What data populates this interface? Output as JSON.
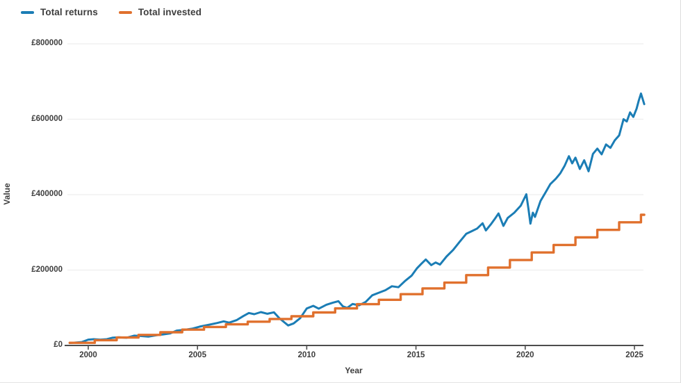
{
  "legend": {
    "items": [
      {
        "label": "Total returns",
        "color": "#1b7db5"
      },
      {
        "label": "Total invested",
        "color": "#e0702d"
      }
    ]
  },
  "colors": {
    "returns_line": "#1b7db5",
    "invested_line": "#e0702d",
    "axis": "#4d4d4d",
    "gridline": "#ededed",
    "text": "#3d3d3d",
    "background": "#ffffff"
  },
  "chart_data": {
    "type": "line",
    "title": "",
    "xlabel": "Year",
    "ylabel": "Value",
    "x_range": [
      1999.15,
      2025.45
    ],
    "ylim": [
      0,
      800000
    ],
    "grid": "horizontal-only",
    "legend_position": "top-left",
    "x_ticks": [
      {
        "value": 2000,
        "label": "2000"
      },
      {
        "value": 2005,
        "label": "2005"
      },
      {
        "value": 2010,
        "label": "2010"
      },
      {
        "value": 2015,
        "label": "2015"
      },
      {
        "value": 2020,
        "label": "2020"
      },
      {
        "value": 2025,
        "label": "2025"
      }
    ],
    "y_ticks": [
      {
        "value": 0,
        "label": "£0"
      },
      {
        "value": 200000,
        "label": "£200000"
      },
      {
        "value": 400000,
        "label": "£400000"
      },
      {
        "value": 600000,
        "label": "£600000"
      },
      {
        "value": 800000,
        "label": "£800000"
      }
    ],
    "series": [
      {
        "name": "Total returns",
        "color": "#1b7db5",
        "style": "line",
        "points": [
          [
            1999.15,
            6500
          ],
          [
            1999.4,
            7500
          ],
          [
            1999.7,
            9000
          ],
          [
            2000.0,
            15500
          ],
          [
            2000.25,
            16500
          ],
          [
            2000.55,
            15500
          ],
          [
            2000.85,
            16500
          ],
          [
            2001.1,
            20500
          ],
          [
            2001.4,
            21500
          ],
          [
            2001.75,
            20500
          ],
          [
            2002.1,
            26000
          ],
          [
            2002.4,
            25000
          ],
          [
            2002.75,
            23500
          ],
          [
            2003.1,
            27000
          ],
          [
            2003.45,
            29500
          ],
          [
            2003.75,
            32000
          ],
          [
            2004.05,
            39500
          ],
          [
            2004.4,
            41500
          ],
          [
            2004.75,
            44500
          ],
          [
            2005.1,
            50000
          ],
          [
            2005.5,
            54500
          ],
          [
            2005.9,
            59500
          ],
          [
            2006.2,
            64000
          ],
          [
            2006.45,
            60500
          ],
          [
            2006.8,
            67500
          ],
          [
            2007.1,
            78000
          ],
          [
            2007.35,
            86000
          ],
          [
            2007.6,
            83000
          ],
          [
            2007.9,
            88500
          ],
          [
            2008.2,
            84000
          ],
          [
            2008.5,
            88000
          ],
          [
            2008.75,
            72000
          ],
          [
            2009.0,
            60000
          ],
          [
            2009.15,
            53000
          ],
          [
            2009.4,
            58500
          ],
          [
            2009.7,
            72500
          ],
          [
            2010.0,
            98000
          ],
          [
            2010.3,
            105000
          ],
          [
            2010.55,
            97500
          ],
          [
            2010.9,
            108000
          ],
          [
            2011.2,
            113500
          ],
          [
            2011.45,
            117500
          ],
          [
            2011.65,
            104000
          ],
          [
            2011.85,
            99500
          ],
          [
            2012.1,
            110000
          ],
          [
            2012.4,
            106500
          ],
          [
            2012.7,
            115500
          ],
          [
            2013.0,
            133000
          ],
          [
            2013.3,
            140000
          ],
          [
            2013.6,
            146500
          ],
          [
            2013.9,
            157000
          ],
          [
            2014.2,
            154500
          ],
          [
            2014.5,
            171000
          ],
          [
            2014.8,
            185000
          ],
          [
            2015.05,
            205000
          ],
          [
            2015.25,
            217000
          ],
          [
            2015.45,
            228000
          ],
          [
            2015.7,
            213000
          ],
          [
            2015.9,
            220000
          ],
          [
            2016.1,
            214500
          ],
          [
            2016.4,
            236000
          ],
          [
            2016.7,
            253000
          ],
          [
            2017.0,
            275000
          ],
          [
            2017.3,
            296000
          ],
          [
            2017.55,
            303000
          ],
          [
            2017.8,
            310000
          ],
          [
            2018.05,
            324000
          ],
          [
            2018.2,
            305000
          ],
          [
            2018.45,
            323000
          ],
          [
            2018.6,
            335000
          ],
          [
            2018.78,
            350000
          ],
          [
            2019.0,
            317000
          ],
          [
            2019.2,
            338000
          ],
          [
            2019.5,
            352000
          ],
          [
            2019.8,
            371000
          ],
          [
            2020.05,
            401000
          ],
          [
            2020.15,
            362000
          ],
          [
            2020.24,
            323000
          ],
          [
            2020.35,
            352000
          ],
          [
            2020.45,
            341000
          ],
          [
            2020.7,
            383000
          ],
          [
            2020.95,
            408000
          ],
          [
            2021.15,
            428000
          ],
          [
            2021.4,
            442000
          ],
          [
            2021.6,
            456000
          ],
          [
            2021.8,
            476000
          ],
          [
            2022.0,
            502000
          ],
          [
            2022.15,
            483000
          ],
          [
            2022.3,
            498000
          ],
          [
            2022.5,
            468000
          ],
          [
            2022.7,
            491000
          ],
          [
            2022.9,
            462000
          ],
          [
            2023.1,
            508000
          ],
          [
            2023.3,
            522000
          ],
          [
            2023.5,
            507000
          ],
          [
            2023.7,
            533000
          ],
          [
            2023.9,
            524000
          ],
          [
            2024.1,
            544000
          ],
          [
            2024.3,
            557000
          ],
          [
            2024.5,
            600000
          ],
          [
            2024.65,
            594000
          ],
          [
            2024.8,
            618000
          ],
          [
            2024.95,
            606000
          ],
          [
            2025.1,
            628000
          ],
          [
            2025.2,
            650000
          ],
          [
            2025.3,
            668000
          ],
          [
            2025.45,
            640000
          ]
        ]
      },
      {
        "name": "Total invested",
        "color": "#e0702d",
        "style": "step-after",
        "points": [
          [
            1999.15,
            7000
          ],
          [
            2000.3,
            14000
          ],
          [
            2001.3,
            21000
          ],
          [
            2002.3,
            28000
          ],
          [
            2003.3,
            35000
          ],
          [
            2004.3,
            42000
          ],
          [
            2005.3,
            49000
          ],
          [
            2006.3,
            56000
          ],
          [
            2007.3,
            63000
          ],
          [
            2008.3,
            70200
          ],
          [
            2009.3,
            77400
          ],
          [
            2010.3,
            87600
          ],
          [
            2011.3,
            98280
          ],
          [
            2012.3,
            109560
          ],
          [
            2013.3,
            121080
          ],
          [
            2014.3,
            136080
          ],
          [
            2015.3,
            151320
          ],
          [
            2016.3,
            166560
          ],
          [
            2017.3,
            186560
          ],
          [
            2018.3,
            206560
          ],
          [
            2019.3,
            226560
          ],
          [
            2020.3,
            246560
          ],
          [
            2021.3,
            266560
          ],
          [
            2022.3,
            286560
          ],
          [
            2023.3,
            306560
          ],
          [
            2024.3,
            326560
          ],
          [
            2025.3,
            346560
          ]
        ]
      }
    ]
  }
}
